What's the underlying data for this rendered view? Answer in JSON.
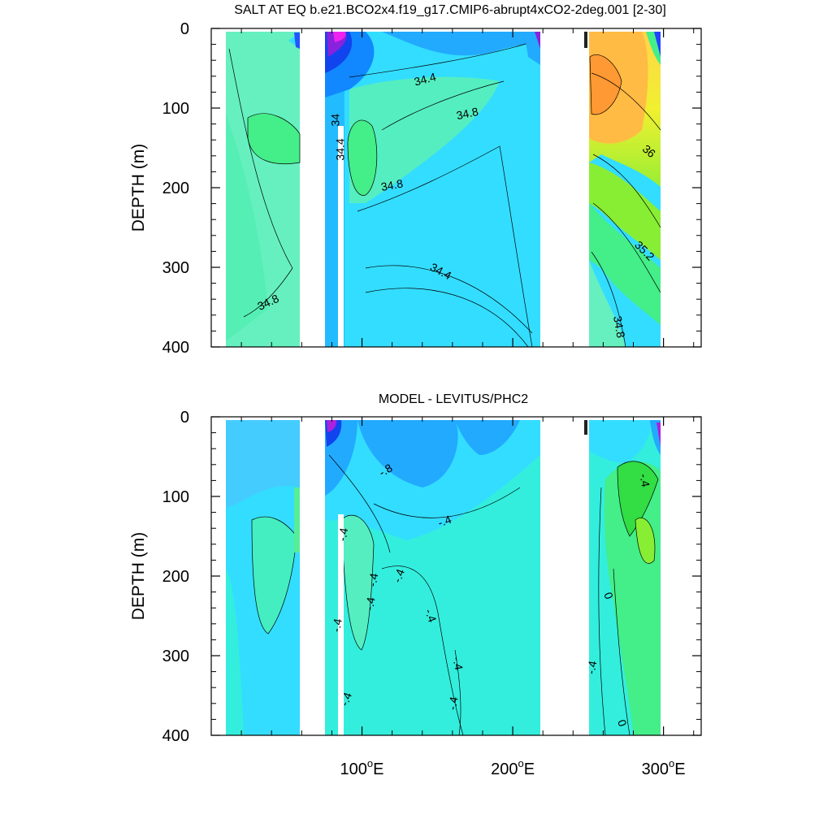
{
  "chart_data": [
    {
      "type": "contour",
      "title": "SALT AT EQ b.e21.BCO2x4.f19_g17.CMIP6-abrupt4xCO2-2deg.001 [2-30]",
      "ylabel": "DEPTH (m)",
      "xlabel": "",
      "xlim": [
        0,
        325
      ],
      "ylim": [
        400,
        0
      ],
      "x_ticks": [
        100,
        200,
        300
      ],
      "x_tick_labels": [
        "",
        "",
        ""
      ],
      "y_ticks": [
        0,
        100,
        200,
        300,
        400
      ],
      "y_tick_labels": [
        "0",
        "100",
        "200",
        "300",
        "400"
      ],
      "ocean_segments_lon": [
        [
          10,
          59
        ],
        [
          76,
          218
        ],
        [
          251,
          298
        ]
      ],
      "contour_labels": [
        {
          "text": "34.4",
          "lon": 142,
          "depth": 65,
          "angle": -15
        },
        {
          "text": "34.8",
          "lon": 170,
          "depth": 108,
          "angle": -12
        },
        {
          "text": "34",
          "lon": 83,
          "depth": 115,
          "angle": -90
        },
        {
          "text": "34.4",
          "lon": 86,
          "depth": 152,
          "angle": -90
        },
        {
          "text": "34.8",
          "lon": 120,
          "depth": 198,
          "angle": -10
        },
        {
          "text": "34.4",
          "lon": 152,
          "depth": 306,
          "angle": 28
        },
        {
          "text": "34.8",
          "lon": 38,
          "depth": 345,
          "angle": -25
        },
        {
          "text": "36",
          "lon": 290,
          "depth": 155,
          "angle": 40
        },
        {
          "text": "35.2",
          "lon": 287,
          "depth": 280,
          "angle": 45
        },
        {
          "text": "34.8",
          "lon": 270,
          "depth": 375,
          "angle": 80
        }
      ]
    },
    {
      "type": "contour",
      "title": "MODEL - LEVITUS/PHC2",
      "ylabel": "DEPTH (m)",
      "xlabel": "",
      "xlim": [
        0,
        325
      ],
      "ylim": [
        400,
        0
      ],
      "x_ticks": [
        100,
        200,
        300
      ],
      "x_tick_labels": [
        "100°E",
        "200°E",
        "300°E"
      ],
      "y_ticks": [
        0,
        100,
        200,
        300,
        400
      ],
      "y_tick_labels": [
        "0",
        "100",
        "200",
        "300",
        "400"
      ],
      "ocean_segments_lon": [
        [
          10,
          59
        ],
        [
          76,
          218
        ],
        [
          251,
          298
        ]
      ],
      "contour_labels": [
        {
          "text": "-.8",
          "lon": 116,
          "depth": 68,
          "angle": -30
        },
        {
          "text": "-.4",
          "lon": 155,
          "depth": 132,
          "angle": -20
        },
        {
          "text": "-.4",
          "lon": 287,
          "depth": 80,
          "angle": 80
        },
        {
          "text": "-.4",
          "lon": 88,
          "depth": 148,
          "angle": -80
        },
        {
          "text": "-.4",
          "lon": 108,
          "depth": 205,
          "angle": -80
        },
        {
          "text": "-.4",
          "lon": 125,
          "depth": 200,
          "angle": -70
        },
        {
          "text": "-.4",
          "lon": 106,
          "depth": 235,
          "angle": -80
        },
        {
          "text": "-.4",
          "lon": 145,
          "depth": 250,
          "angle": 70
        },
        {
          "text": "-.4",
          "lon": 84,
          "depth": 262,
          "angle": -80
        },
        {
          "text": "-.4",
          "lon": 163,
          "depth": 310,
          "angle": 80
        },
        {
          "text": "-.4",
          "lon": 90,
          "depth": 355,
          "angle": -70
        },
        {
          "text": "-.4",
          "lon": 161,
          "depth": 360,
          "angle": -80
        },
        {
          "text": "0",
          "lon": 263,
          "depth": 225,
          "angle": 70
        },
        {
          "text": "-.4",
          "lon": 253,
          "depth": 315,
          "angle": -80
        },
        {
          "text": "0",
          "lon": 272,
          "depth": 385,
          "angle": 70
        }
      ]
    }
  ]
}
